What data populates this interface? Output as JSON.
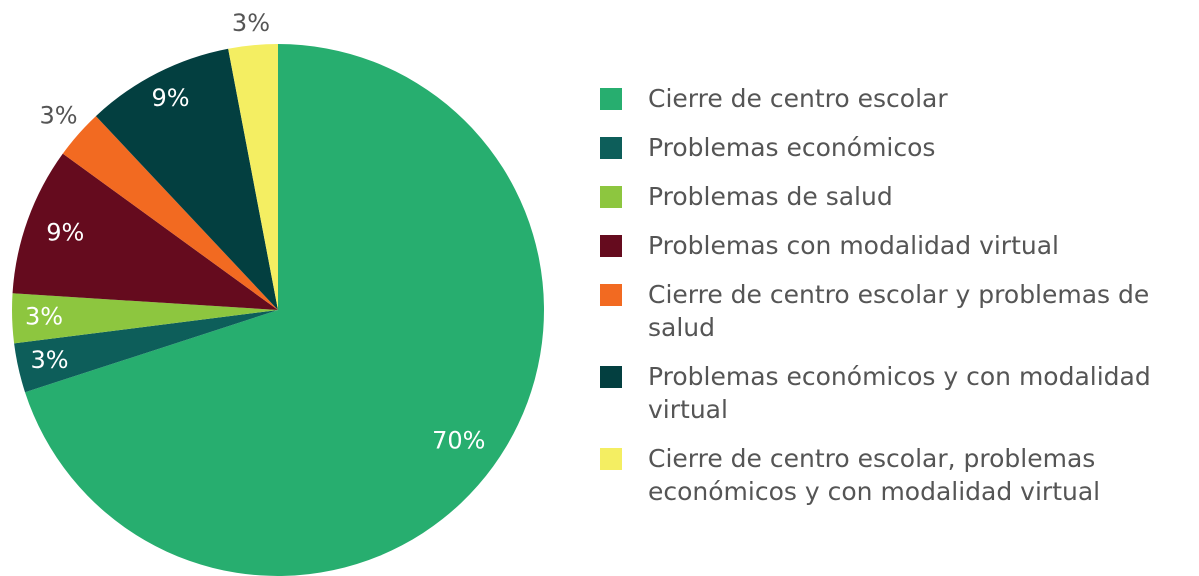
{
  "chart_data": {
    "type": "pie",
    "categories": [
      "Cierre de centro escolar",
      "Problemas económicos",
      "Problemas de salud",
      "Problemas con modalidad virtual",
      "Cierre de centro escolar y problemas de salud",
      "Problemas económicos y con modalidad virtual",
      "Cierre de centro escolar, problemas económicos y con modalidad virtual"
    ],
    "values": [
      70,
      3,
      3,
      9,
      3,
      9,
      3
    ],
    "value_labels": [
      "70%",
      "3%",
      "3%",
      "9%",
      "3%",
      "9%",
      "3%"
    ],
    "colors": [
      "#27ae6f",
      "#0d5e5a",
      "#8dc63f",
      "#650b1e",
      "#f26a21",
      "#033f40",
      "#f4ee62"
    ],
    "legend": "right"
  }
}
